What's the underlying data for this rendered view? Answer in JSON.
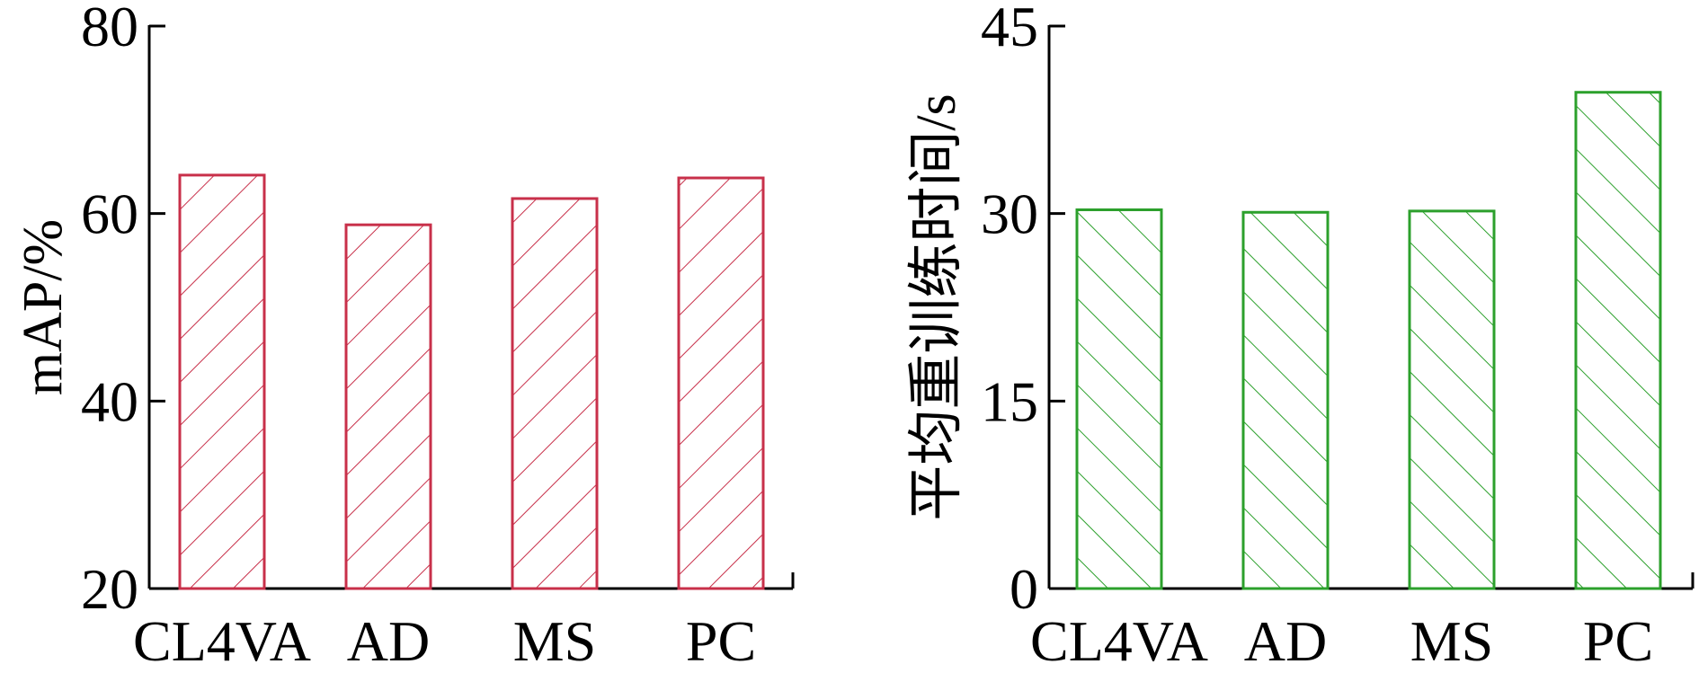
{
  "chart_data": [
    {
      "type": "bar",
      "categories": [
        "CL4VA",
        "AD",
        "MS",
        "PC"
      ],
      "values": [
        64.1,
        58.8,
        61.6,
        63.8
      ],
      "title": "",
      "xlabel": "",
      "ylabel": "mAP/%",
      "ylim": [
        20,
        80
      ],
      "yticks": [
        20,
        40,
        60,
        80
      ],
      "color": "#c8304a",
      "hatch": "forward-diagonal",
      "grid": false
    },
    {
      "type": "bar",
      "categories": [
        "CL4VA",
        "AD",
        "MS",
        "PC"
      ],
      "values": [
        30.3,
        30.1,
        30.2,
        39.7
      ],
      "title": "",
      "xlabel": "",
      "ylabel": "平均重训练时间/s",
      "ylim": [
        0,
        45
      ],
      "yticks": [
        0,
        15,
        30,
        45
      ],
      "color": "#2ca02c",
      "hatch": "back-diagonal",
      "grid": false
    }
  ]
}
